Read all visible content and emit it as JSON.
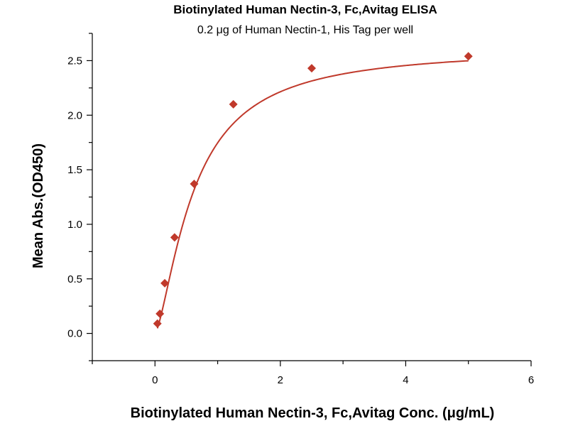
{
  "chart_data": {
    "type": "scatter",
    "title": "Biotinylated Human Nectin-3, Fc,Avitag ELISA",
    "subtitle": "0.2 μg of Human Nectin-1, His Tag per well",
    "xlabel": "Biotinylated Human Nectin-3, Fc,Avitag Conc. (μg/mL)",
    "ylabel": "Mean Abs.(OD450)",
    "xlim": [
      -1,
      6
    ],
    "ylim": [
      -0.25,
      2.75
    ],
    "x_ticks": [
      0,
      2,
      4,
      6
    ],
    "y_ticks": [
      0.0,
      0.5,
      1.0,
      1.5,
      2.0,
      2.5
    ],
    "x_tick_labels": [
      "0",
      "2",
      "4",
      "6"
    ],
    "y_tick_labels": [
      "0.0",
      "0.5",
      "1.0",
      "1.5",
      "2.0",
      "2.5"
    ],
    "grid": false,
    "series": [
      {
        "marker": "diamond",
        "color": "#C0392B",
        "x": [
          0.039,
          0.078,
          0.156,
          0.3125,
          0.625,
          1.25,
          2.5,
          5.0
        ],
        "y": [
          0.09,
          0.18,
          0.46,
          0.88,
          1.37,
          2.1,
          2.43,
          2.54
        ],
        "fit_curve": true
      }
    ]
  }
}
